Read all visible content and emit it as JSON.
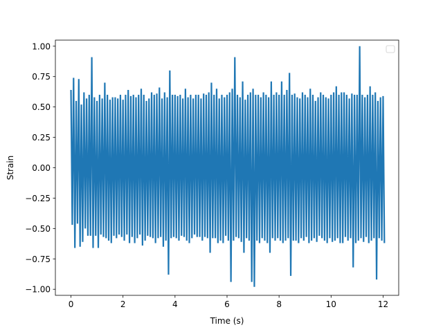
{
  "chart_data": {
    "type": "line",
    "xlabel": "Time (s)",
    "ylabel": "Strain",
    "xlim": [
      -0.6,
      12.6
    ],
    "ylim": [
      -1.05,
      1.05
    ],
    "xticks": [
      {
        "value": 0,
        "label": "0"
      },
      {
        "value": 2,
        "label": "2"
      },
      {
        "value": 4,
        "label": "4"
      },
      {
        "value": 6,
        "label": "6"
      },
      {
        "value": 8,
        "label": "8"
      },
      {
        "value": 10,
        "label": "10"
      },
      {
        "value": 12,
        "label": "12"
      }
    ],
    "yticks": [
      {
        "value": 1.0,
        "label": "1.00"
      },
      {
        "value": 0.75,
        "label": "0.75"
      },
      {
        "value": 0.5,
        "label": "0.50"
      },
      {
        "value": 0.25,
        "label": "0.25"
      },
      {
        "value": 0.0,
        "label": "0.00"
      },
      {
        "value": -0.25,
        "label": "−0.25"
      },
      {
        "value": -0.5,
        "label": "−0.50"
      },
      {
        "value": -0.75,
        "label": "−0.75"
      },
      {
        "value": -1.0,
        "label": "−1.00"
      }
    ],
    "grid": false,
    "legend": {
      "placement": "top-right",
      "entries": []
    },
    "series_color": "#1f77b4",
    "series": [
      {
        "x": [
          0.0,
          0.1,
          0.2,
          0.3,
          0.4,
          0.5,
          0.6,
          0.7,
          0.8,
          0.9,
          1.0,
          1.1,
          1.2,
          1.3,
          1.4,
          1.5,
          1.6,
          1.7,
          1.8,
          1.9,
          2.0,
          2.1,
          2.2,
          2.3,
          2.4,
          2.5,
          2.6,
          2.7,
          2.8,
          2.9,
          3.0,
          3.1,
          3.2,
          3.3,
          3.4,
          3.5,
          3.6,
          3.7,
          3.8,
          3.9,
          4.0,
          4.1,
          4.2,
          4.3,
          4.4,
          4.5,
          4.6,
          4.7,
          4.8,
          4.9,
          5.0,
          5.1,
          5.2,
          5.3,
          5.4,
          5.5,
          5.6,
          5.7,
          5.8,
          5.9,
          6.0,
          6.1,
          6.2,
          6.3,
          6.4,
          6.5,
          6.6,
          6.7,
          6.8,
          6.9,
          7.0,
          7.1,
          7.2,
          7.3,
          7.4,
          7.5,
          7.6,
          7.7,
          7.8,
          7.9,
          8.0,
          8.1,
          8.2,
          8.3,
          8.4,
          8.5,
          8.6,
          8.7,
          8.8,
          8.9,
          9.0,
          9.1,
          9.2,
          9.3,
          9.4,
          9.5,
          9.6,
          9.7,
          9.8,
          9.9,
          10.0,
          10.1,
          10.2,
          10.3,
          10.4,
          10.5,
          10.6,
          10.7,
          10.8,
          10.9,
          11.0,
          11.1,
          11.2,
          11.3,
          11.4,
          11.5,
          11.6,
          11.7,
          11.8,
          11.9,
          12.0
        ],
        "max": [
          0.64,
          0.74,
          0.55,
          0.73,
          0.52,
          0.62,
          0.57,
          0.6,
          0.91,
          0.58,
          0.55,
          0.6,
          0.57,
          0.7,
          0.6,
          0.56,
          0.58,
          0.58,
          0.57,
          0.6,
          0.56,
          0.6,
          0.64,
          0.59,
          0.6,
          0.58,
          0.6,
          0.65,
          0.6,
          0.55,
          0.57,
          0.62,
          0.6,
          0.61,
          0.66,
          0.57,
          0.62,
          0.58,
          0.8,
          0.6,
          0.6,
          0.59,
          0.6,
          0.57,
          0.65,
          0.58,
          0.6,
          0.57,
          0.6,
          0.6,
          0.57,
          0.61,
          0.6,
          0.62,
          0.7,
          0.6,
          0.65,
          0.57,
          0.6,
          0.58,
          0.6,
          0.62,
          0.65,
          0.91,
          0.6,
          0.58,
          0.71,
          0.56,
          0.6,
          0.62,
          0.65,
          0.6,
          0.6,
          0.58,
          0.62,
          0.6,
          0.58,
          0.71,
          0.6,
          0.62,
          0.6,
          0.71,
          0.6,
          0.64,
          0.78,
          0.6,
          0.61,
          0.58,
          0.57,
          0.62,
          0.6,
          0.58,
          0.65,
          0.6,
          0.55,
          0.58,
          0.62,
          0.6,
          0.58,
          0.57,
          0.6,
          0.62,
          0.67,
          0.6,
          0.62,
          0.62,
          0.6,
          0.57,
          0.61,
          0.6,
          0.6,
          1.0,
          0.6,
          0.58,
          0.6,
          0.67,
          0.6,
          0.62,
          0.55,
          0.58,
          0.59
        ],
        "min": [
          -0.47,
          -0.66,
          -0.46,
          -0.65,
          -0.61,
          -0.5,
          -0.56,
          -0.56,
          -0.66,
          -0.56,
          -0.66,
          -0.55,
          -0.57,
          -0.58,
          -0.6,
          -0.62,
          -0.56,
          -0.58,
          -0.55,
          -0.57,
          -0.6,
          -0.55,
          -0.62,
          -0.57,
          -0.62,
          -0.58,
          -0.55,
          -0.64,
          -0.6,
          -0.56,
          -0.57,
          -0.58,
          -0.62,
          -0.58,
          -0.57,
          -0.65,
          -0.6,
          -0.88,
          -0.58,
          -0.57,
          -0.58,
          -0.6,
          -0.56,
          -0.57,
          -0.6,
          -0.62,
          -0.58,
          -0.55,
          -0.57,
          -0.57,
          -0.6,
          -0.57,
          -0.58,
          -0.7,
          -0.58,
          -0.58,
          -0.62,
          -0.6,
          -0.62,
          -0.56,
          -0.6,
          -0.94,
          -0.6,
          -0.57,
          -0.58,
          -0.61,
          -0.7,
          -0.58,
          -0.6,
          -0.94,
          -0.98,
          -0.6,
          -0.62,
          -0.58,
          -0.6,
          -0.62,
          -0.7,
          -0.58,
          -0.6,
          -0.58,
          -0.6,
          -0.62,
          -0.6,
          -0.58,
          -0.89,
          -0.6,
          -0.6,
          -0.62,
          -0.58,
          -0.6,
          -0.57,
          -0.62,
          -0.6,
          -0.58,
          -0.61,
          -0.56,
          -0.58,
          -0.6,
          -0.62,
          -0.58,
          -0.61,
          -0.6,
          -0.58,
          -0.62,
          -0.62,
          -0.57,
          -0.6,
          -0.58,
          -0.82,
          -0.62,
          -0.6,
          -0.58,
          -0.61,
          -0.57,
          -0.62,
          -0.6,
          -0.58,
          -0.92,
          -0.58,
          -0.6,
          -0.62
        ]
      }
    ]
  }
}
